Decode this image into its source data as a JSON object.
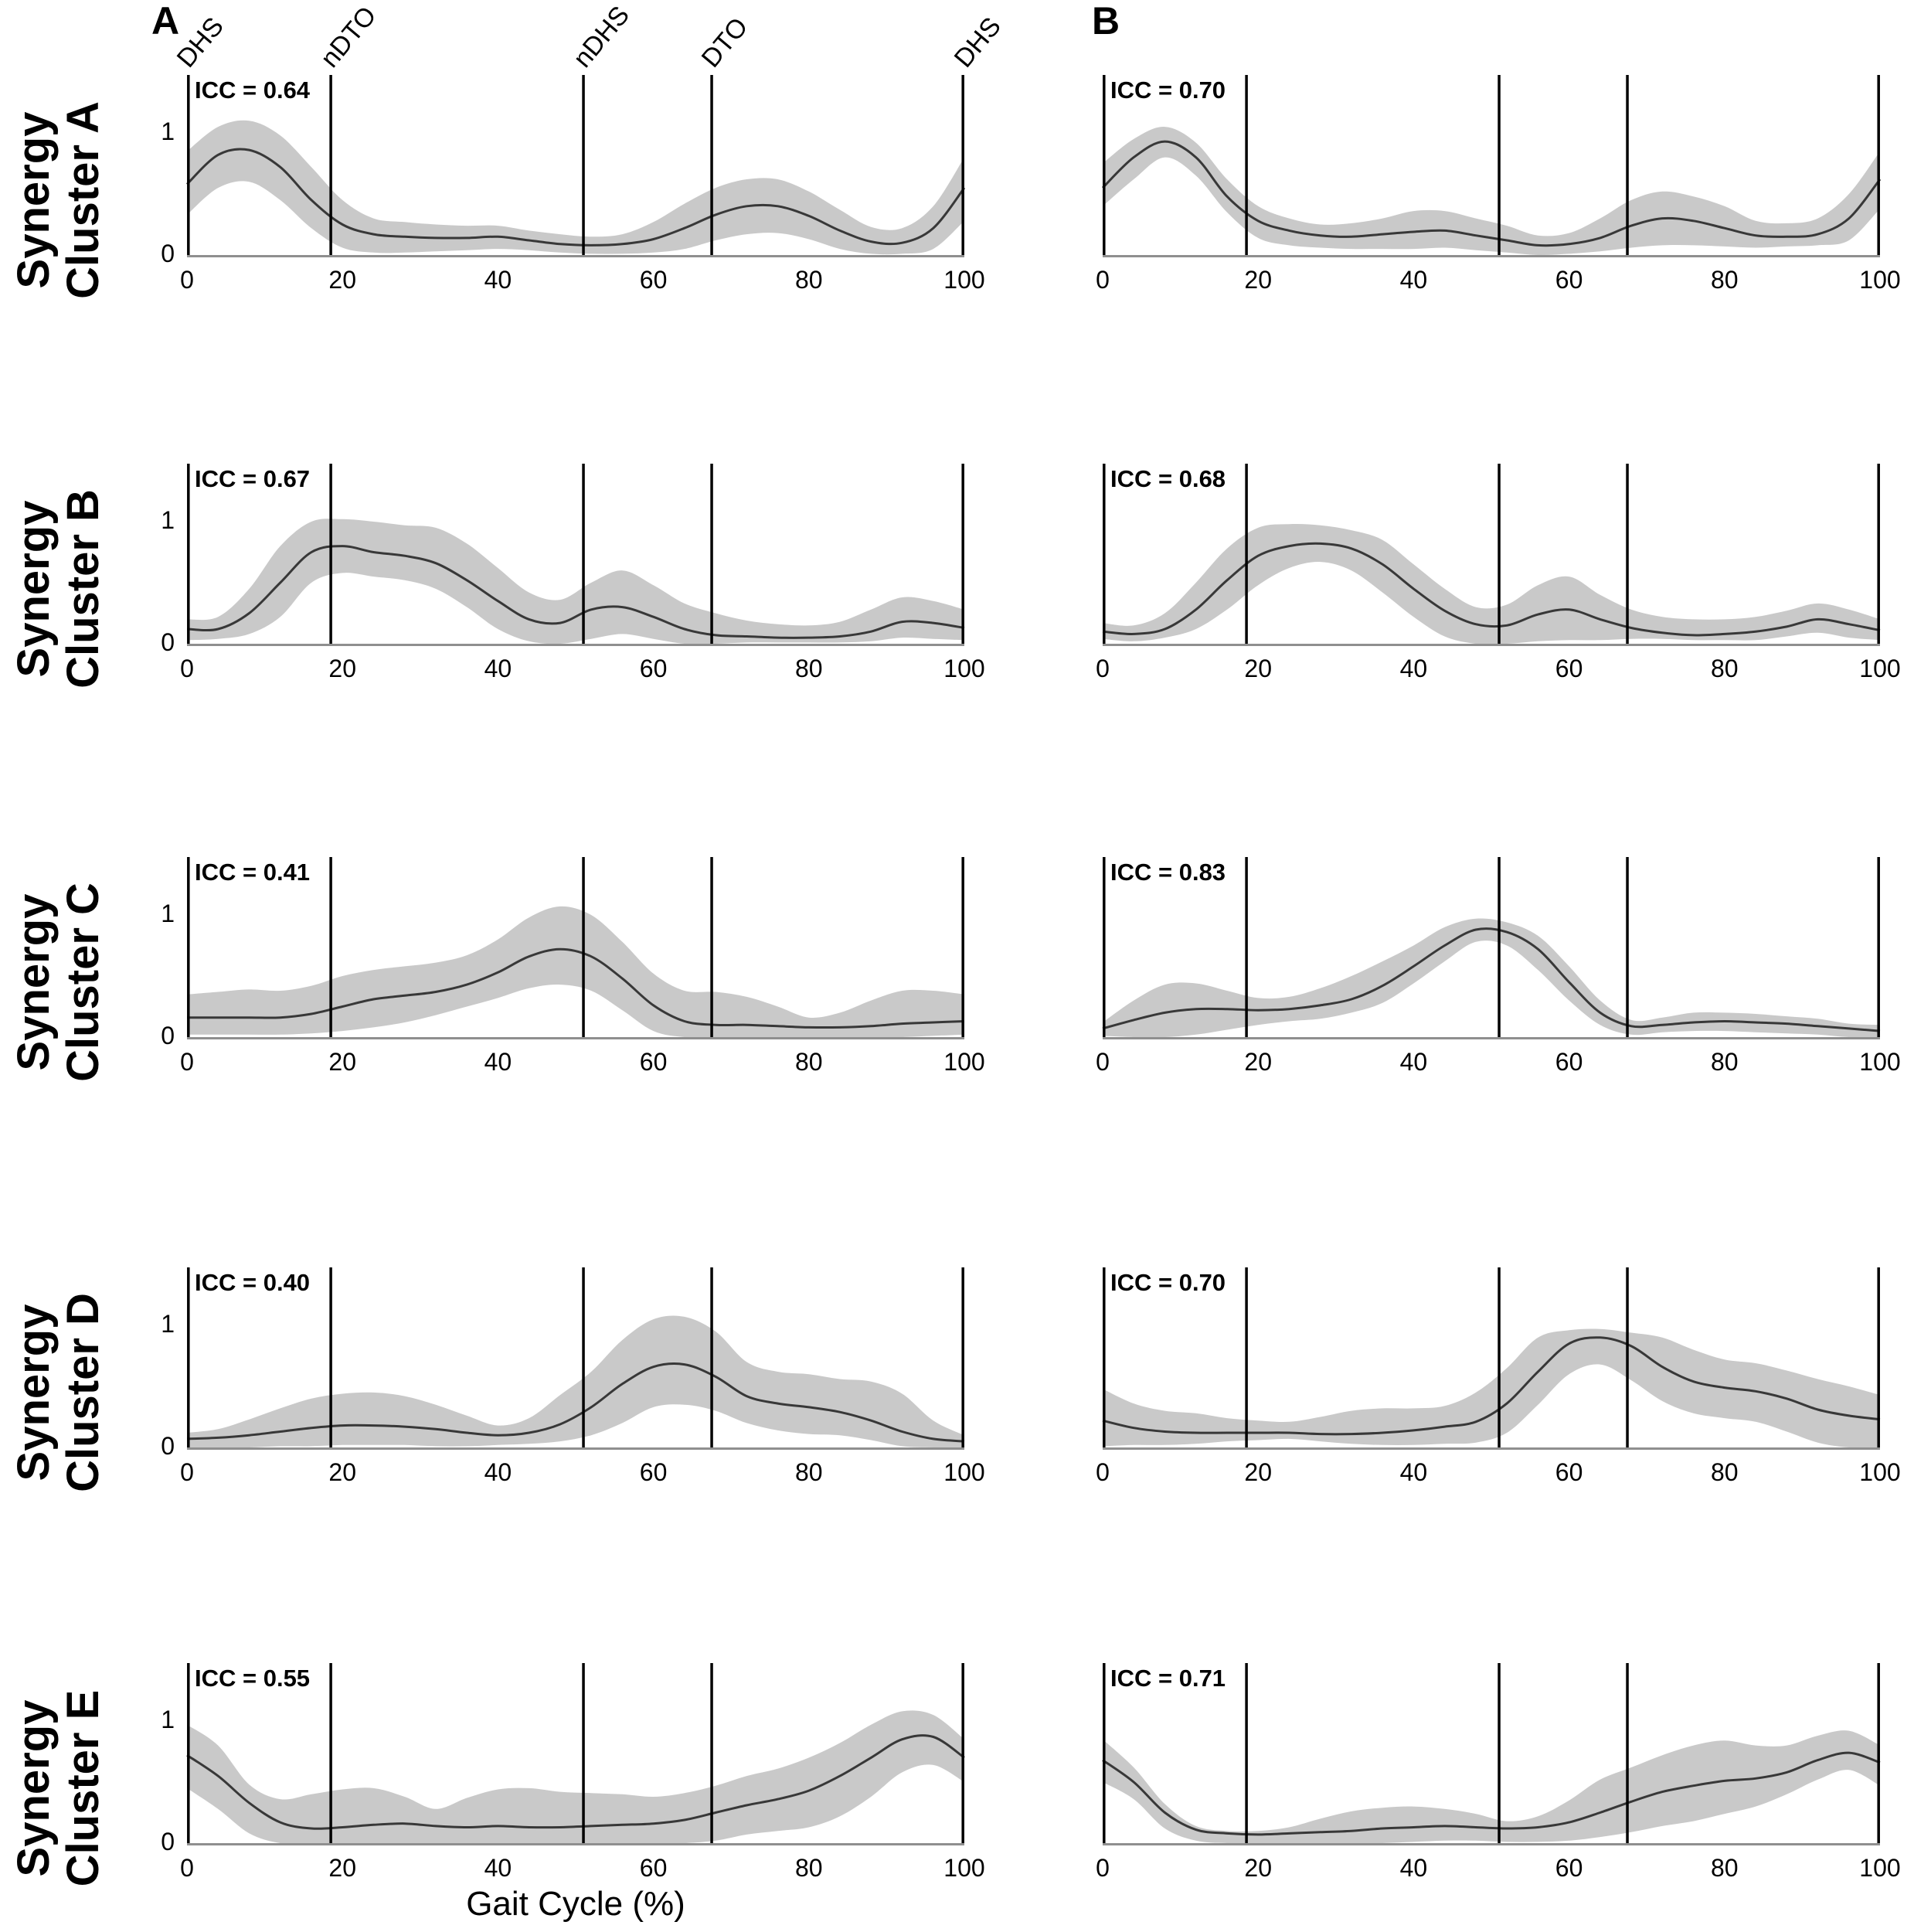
{
  "figure": {
    "columns": [
      {
        "header": "A"
      },
      {
        "header": "B"
      }
    ],
    "rows": [
      {
        "line1": "Synergy",
        "line2": "Cluster A"
      },
      {
        "line1": "Synergy",
        "line2": "Cluster B"
      },
      {
        "line1": "Synergy",
        "line2": "Cluster C"
      },
      {
        "line1": "Synergy",
        "line2": "Cluster D"
      },
      {
        "line1": "Synergy",
        "line2": "Cluster E"
      }
    ],
    "xlabel": "Gait Cycle (%)",
    "x_ticks": [
      "0",
      "20",
      "40",
      "60",
      "80",
      "100"
    ],
    "y_tick_top": "1",
    "y_tick_bottom": "0",
    "event_labels": [
      "DHS",
      "nDTO",
      "nDHS",
      "DTO",
      "DHS"
    ],
    "event_positions": [
      0,
      18.5,
      51,
      67.5,
      100
    ],
    "colors": {
      "band": "#c9c9c9",
      "mean_line": "#383838",
      "event_line": "#000000",
      "axis_line": "#8f8f8f",
      "text": "#000000"
    }
  },
  "chart_data": [
    {
      "type": "area",
      "row": "Synergy Cluster A",
      "column": "A",
      "icc": 0.64,
      "icc_label": "ICC = 0.64",
      "x_start": 0,
      "x_step": 4,
      "xlim": [
        0,
        100
      ],
      "ylim": [
        0,
        1.47
      ],
      "mean": [
        0.58,
        0.82,
        0.86,
        0.72,
        0.45,
        0.25,
        0.17,
        0.15,
        0.14,
        0.14,
        0.15,
        0.12,
        0.09,
        0.08,
        0.09,
        0.13,
        0.22,
        0.33,
        0.4,
        0.4,
        0.32,
        0.2,
        0.11,
        0.1,
        0.22,
        0.55
      ],
      "upper": [
        0.85,
        1.05,
        1.1,
        0.98,
        0.72,
        0.45,
        0.3,
        0.27,
        0.25,
        0.24,
        0.24,
        0.2,
        0.17,
        0.15,
        0.17,
        0.27,
        0.42,
        0.55,
        0.62,
        0.62,
        0.52,
        0.37,
        0.23,
        0.22,
        0.4,
        0.8
      ],
      "lower": [
        0.33,
        0.55,
        0.6,
        0.45,
        0.22,
        0.06,
        0.02,
        0.02,
        0.03,
        0.04,
        0.05,
        0.04,
        0.02,
        0.01,
        0.01,
        0.02,
        0.05,
        0.12,
        0.17,
        0.18,
        0.13,
        0.05,
        0.01,
        0.01,
        0.05,
        0.28
      ]
    },
    {
      "type": "area",
      "row": "Synergy Cluster A",
      "column": "B",
      "icc": 0.7,
      "icc_label": "ICC = 0.70",
      "x_start": 0,
      "x_step": 4,
      "xlim": [
        0,
        100
      ],
      "ylim": [
        0,
        1.47
      ],
      "mean": [
        0.55,
        0.8,
        0.93,
        0.8,
        0.48,
        0.28,
        0.2,
        0.16,
        0.15,
        0.17,
        0.19,
        0.2,
        0.16,
        0.12,
        0.08,
        0.09,
        0.14,
        0.24,
        0.3,
        0.28,
        0.22,
        0.16,
        0.15,
        0.17,
        0.3,
        0.62
      ],
      "upper": [
        0.75,
        0.95,
        1.05,
        0.92,
        0.62,
        0.4,
        0.3,
        0.25,
        0.26,
        0.3,
        0.36,
        0.36,
        0.3,
        0.24,
        0.16,
        0.18,
        0.3,
        0.45,
        0.52,
        0.48,
        0.4,
        0.28,
        0.26,
        0.3,
        0.5,
        0.85
      ],
      "lower": [
        0.4,
        0.62,
        0.8,
        0.65,
        0.35,
        0.14,
        0.08,
        0.06,
        0.05,
        0.05,
        0.05,
        0.06,
        0.04,
        0.02,
        0.0,
        0.01,
        0.03,
        0.06,
        0.08,
        0.08,
        0.07,
        0.06,
        0.07,
        0.08,
        0.12,
        0.38
      ]
    },
    {
      "type": "area",
      "row": "Synergy Cluster B",
      "column": "A",
      "icc": 0.67,
      "icc_label": "ICC = 0.67",
      "x_start": 0,
      "x_step": 4,
      "xlim": [
        0,
        100
      ],
      "ylim": [
        0,
        1.47
      ],
      "mean": [
        0.12,
        0.12,
        0.25,
        0.5,
        0.75,
        0.8,
        0.75,
        0.72,
        0.66,
        0.52,
        0.35,
        0.2,
        0.17,
        0.28,
        0.3,
        0.22,
        0.12,
        0.07,
        0.06,
        0.05,
        0.05,
        0.06,
        0.1,
        0.18,
        0.17,
        0.13
      ],
      "upper": [
        0.2,
        0.22,
        0.45,
        0.8,
        1.0,
        1.02,
        1.0,
        0.97,
        0.95,
        0.82,
        0.62,
        0.42,
        0.36,
        0.5,
        0.6,
        0.48,
        0.33,
        0.25,
        0.19,
        0.16,
        0.15,
        0.18,
        0.28,
        0.38,
        0.35,
        0.28
      ],
      "lower": [
        0.03,
        0.04,
        0.08,
        0.22,
        0.5,
        0.58,
        0.55,
        0.52,
        0.45,
        0.3,
        0.12,
        0.02,
        0.0,
        0.04,
        0.08,
        0.04,
        0.0,
        0.0,
        0.01,
        0.01,
        0.01,
        0.01,
        0.02,
        0.05,
        0.04,
        0.03
      ]
    },
    {
      "type": "area",
      "row": "Synergy Cluster B",
      "column": "B",
      "icc": 0.68,
      "icc_label": "ICC = 0.68",
      "x_start": 0,
      "x_step": 4,
      "xlim": [
        0,
        100
      ],
      "ylim": [
        0,
        1.47
      ],
      "mean": [
        0.1,
        0.08,
        0.12,
        0.28,
        0.52,
        0.72,
        0.8,
        0.82,
        0.78,
        0.65,
        0.45,
        0.27,
        0.16,
        0.15,
        0.24,
        0.28,
        0.2,
        0.13,
        0.09,
        0.07,
        0.08,
        0.1,
        0.14,
        0.2,
        0.16,
        0.11
      ],
      "upper": [
        0.17,
        0.15,
        0.25,
        0.5,
        0.78,
        0.95,
        0.98,
        0.97,
        0.93,
        0.85,
        0.65,
        0.45,
        0.3,
        0.32,
        0.48,
        0.55,
        0.4,
        0.28,
        0.22,
        0.2,
        0.2,
        0.22,
        0.27,
        0.33,
        0.28,
        0.2
      ],
      "lower": [
        0.04,
        0.02,
        0.05,
        0.12,
        0.28,
        0.48,
        0.62,
        0.67,
        0.6,
        0.42,
        0.22,
        0.06,
        0.0,
        0.0,
        0.02,
        0.03,
        0.03,
        0.04,
        0.04,
        0.03,
        0.03,
        0.03,
        0.06,
        0.09,
        0.05,
        0.03
      ]
    },
    {
      "type": "area",
      "row": "Synergy Cluster C",
      "column": "A",
      "icc": 0.41,
      "icc_label": "ICC = 0.41",
      "x_start": 0,
      "x_step": 4,
      "xlim": [
        0,
        100
      ],
      "ylim": [
        0,
        1.47
      ],
      "mean": [
        0.16,
        0.16,
        0.16,
        0.16,
        0.19,
        0.25,
        0.31,
        0.34,
        0.37,
        0.43,
        0.53,
        0.66,
        0.72,
        0.66,
        0.48,
        0.26,
        0.13,
        0.1,
        0.1,
        0.09,
        0.08,
        0.08,
        0.09,
        0.11,
        0.12,
        0.13
      ],
      "upper": [
        0.35,
        0.37,
        0.39,
        0.38,
        0.42,
        0.5,
        0.55,
        0.58,
        0.61,
        0.67,
        0.8,
        0.98,
        1.07,
        1.0,
        0.78,
        0.52,
        0.38,
        0.37,
        0.33,
        0.25,
        0.16,
        0.2,
        0.3,
        0.38,
        0.38,
        0.35
      ],
      "lower": [
        0.02,
        0.02,
        0.02,
        0.02,
        0.03,
        0.05,
        0.08,
        0.12,
        0.18,
        0.25,
        0.32,
        0.4,
        0.43,
        0.38,
        0.22,
        0.05,
        0.0,
        0.0,
        0.0,
        0.0,
        0.0,
        0.0,
        0.0,
        0.0,
        0.01,
        0.02
      ]
    },
    {
      "type": "area",
      "row": "Synergy Cluster C",
      "column": "B",
      "icc": 0.83,
      "icc_label": "ICC = 0.83",
      "x_start": 0,
      "x_step": 4,
      "xlim": [
        0,
        100
      ],
      "ylim": [
        0,
        1.47
      ],
      "mean": [
        0.07,
        0.14,
        0.2,
        0.23,
        0.23,
        0.22,
        0.23,
        0.26,
        0.31,
        0.42,
        0.58,
        0.75,
        0.88,
        0.86,
        0.72,
        0.45,
        0.2,
        0.09,
        0.1,
        0.12,
        0.13,
        0.12,
        0.11,
        0.09,
        0.07,
        0.05
      ],
      "upper": [
        0.12,
        0.3,
        0.43,
        0.44,
        0.38,
        0.32,
        0.33,
        0.4,
        0.5,
        0.62,
        0.75,
        0.9,
        0.97,
        0.94,
        0.83,
        0.58,
        0.3,
        0.14,
        0.16,
        0.2,
        0.2,
        0.19,
        0.17,
        0.15,
        0.11,
        0.1
      ],
      "lower": [
        0.01,
        0.0,
        0.0,
        0.02,
        0.06,
        0.1,
        0.13,
        0.15,
        0.2,
        0.28,
        0.44,
        0.62,
        0.78,
        0.75,
        0.55,
        0.3,
        0.1,
        0.02,
        0.04,
        0.05,
        0.05,
        0.04,
        0.03,
        0.02,
        0.0,
        0.0
      ]
    },
    {
      "type": "area",
      "row": "Synergy Cluster D",
      "column": "A",
      "icc": 0.4,
      "icc_label": "ICC = 0.40",
      "x_start": 0,
      "x_step": 4,
      "xlim": [
        0,
        100
      ],
      "ylim": [
        0,
        1.47
      ],
      "mean": [
        0.07,
        0.08,
        0.1,
        0.13,
        0.16,
        0.18,
        0.18,
        0.17,
        0.15,
        0.12,
        0.1,
        0.12,
        0.19,
        0.33,
        0.52,
        0.66,
        0.68,
        0.58,
        0.42,
        0.36,
        0.33,
        0.29,
        0.22,
        0.13,
        0.07,
        0.05
      ],
      "upper": [
        0.12,
        0.15,
        0.23,
        0.32,
        0.4,
        0.44,
        0.45,
        0.42,
        0.35,
        0.26,
        0.18,
        0.24,
        0.43,
        0.62,
        0.88,
        1.05,
        1.07,
        0.95,
        0.7,
        0.62,
        0.6,
        0.56,
        0.54,
        0.44,
        0.22,
        0.1
      ],
      "lower": [
        0.0,
        0.0,
        0.0,
        0.01,
        0.01,
        0.02,
        0.02,
        0.02,
        0.01,
        0.01,
        0.02,
        0.03,
        0.05,
        0.1,
        0.2,
        0.33,
        0.35,
        0.3,
        0.2,
        0.14,
        0.11,
        0.1,
        0.06,
        0.01,
        0.0,
        0.0
      ]
    },
    {
      "type": "area",
      "row": "Synergy Cluster D",
      "column": "B",
      "icc": 0.7,
      "icc_label": "ICC = 0.70",
      "x_start": 0,
      "x_step": 4,
      "xlim": [
        0,
        100
      ],
      "ylim": [
        0,
        1.47
      ],
      "mean": [
        0.22,
        0.16,
        0.13,
        0.12,
        0.12,
        0.12,
        0.12,
        0.11,
        0.11,
        0.12,
        0.14,
        0.17,
        0.21,
        0.36,
        0.62,
        0.85,
        0.9,
        0.83,
        0.66,
        0.54,
        0.49,
        0.46,
        0.4,
        0.31,
        0.26,
        0.23
      ],
      "upper": [
        0.48,
        0.36,
        0.3,
        0.28,
        0.24,
        0.22,
        0.21,
        0.25,
        0.3,
        0.32,
        0.32,
        0.34,
        0.45,
        0.65,
        0.9,
        0.96,
        0.97,
        0.94,
        0.9,
        0.8,
        0.72,
        0.69,
        0.63,
        0.56,
        0.5,
        0.43
      ],
      "lower": [
        0.01,
        0.02,
        0.02,
        0.03,
        0.05,
        0.06,
        0.07,
        0.05,
        0.03,
        0.02,
        0.02,
        0.03,
        0.04,
        0.12,
        0.35,
        0.6,
        0.68,
        0.55,
        0.38,
        0.28,
        0.24,
        0.21,
        0.13,
        0.04,
        0.0,
        0.0
      ]
    },
    {
      "type": "area",
      "row": "Synergy Cluster E",
      "column": "A",
      "icc": 0.55,
      "icc_label": "ICC = 0.55",
      "x_start": 0,
      "x_step": 4,
      "xlim": [
        0,
        100
      ],
      "ylim": [
        0,
        1.47
      ],
      "mean": [
        0.72,
        0.55,
        0.33,
        0.17,
        0.12,
        0.13,
        0.15,
        0.16,
        0.14,
        0.13,
        0.14,
        0.13,
        0.13,
        0.14,
        0.15,
        0.16,
        0.19,
        0.25,
        0.31,
        0.36,
        0.43,
        0.55,
        0.7,
        0.85,
        0.87,
        0.7
      ],
      "upper": [
        0.97,
        0.8,
        0.48,
        0.36,
        0.4,
        0.44,
        0.45,
        0.38,
        0.28,
        0.37,
        0.44,
        0.45,
        0.42,
        0.41,
        0.4,
        0.38,
        0.41,
        0.47,
        0.55,
        0.61,
        0.7,
        0.82,
        0.97,
        1.08,
        1.05,
        0.85
      ],
      "lower": [
        0.45,
        0.28,
        0.08,
        0.0,
        0.0,
        0.0,
        0.0,
        0.0,
        0.0,
        0.0,
        0.0,
        0.0,
        0.0,
        0.0,
        0.0,
        0.0,
        0.0,
        0.02,
        0.07,
        0.1,
        0.13,
        0.22,
        0.38,
        0.58,
        0.64,
        0.5
      ]
    },
    {
      "type": "area",
      "row": "Synergy Cluster E",
      "column": "B",
      "icc": 0.71,
      "icc_label": "ICC = 0.71",
      "x_start": 0,
      "x_step": 4,
      "xlim": [
        0,
        100
      ],
      "ylim": [
        0,
        1.47
      ],
      "mean": [
        0.68,
        0.5,
        0.25,
        0.11,
        0.08,
        0.07,
        0.08,
        0.09,
        0.1,
        0.12,
        0.13,
        0.14,
        0.13,
        0.12,
        0.13,
        0.17,
        0.25,
        0.34,
        0.42,
        0.47,
        0.51,
        0.53,
        0.58,
        0.68,
        0.74,
        0.66
      ],
      "upper": [
        0.85,
        0.62,
        0.32,
        0.14,
        0.1,
        0.1,
        0.13,
        0.2,
        0.26,
        0.29,
        0.3,
        0.28,
        0.24,
        0.18,
        0.22,
        0.35,
        0.52,
        0.62,
        0.72,
        0.8,
        0.84,
        0.8,
        0.8,
        0.88,
        0.92,
        0.8
      ],
      "lower": [
        0.5,
        0.36,
        0.12,
        0.02,
        0.0,
        0.0,
        0.0,
        0.0,
        0.0,
        0.0,
        0.01,
        0.02,
        0.02,
        0.01,
        0.01,
        0.02,
        0.05,
        0.09,
        0.14,
        0.18,
        0.24,
        0.3,
        0.4,
        0.52,
        0.6,
        0.47
      ]
    }
  ]
}
